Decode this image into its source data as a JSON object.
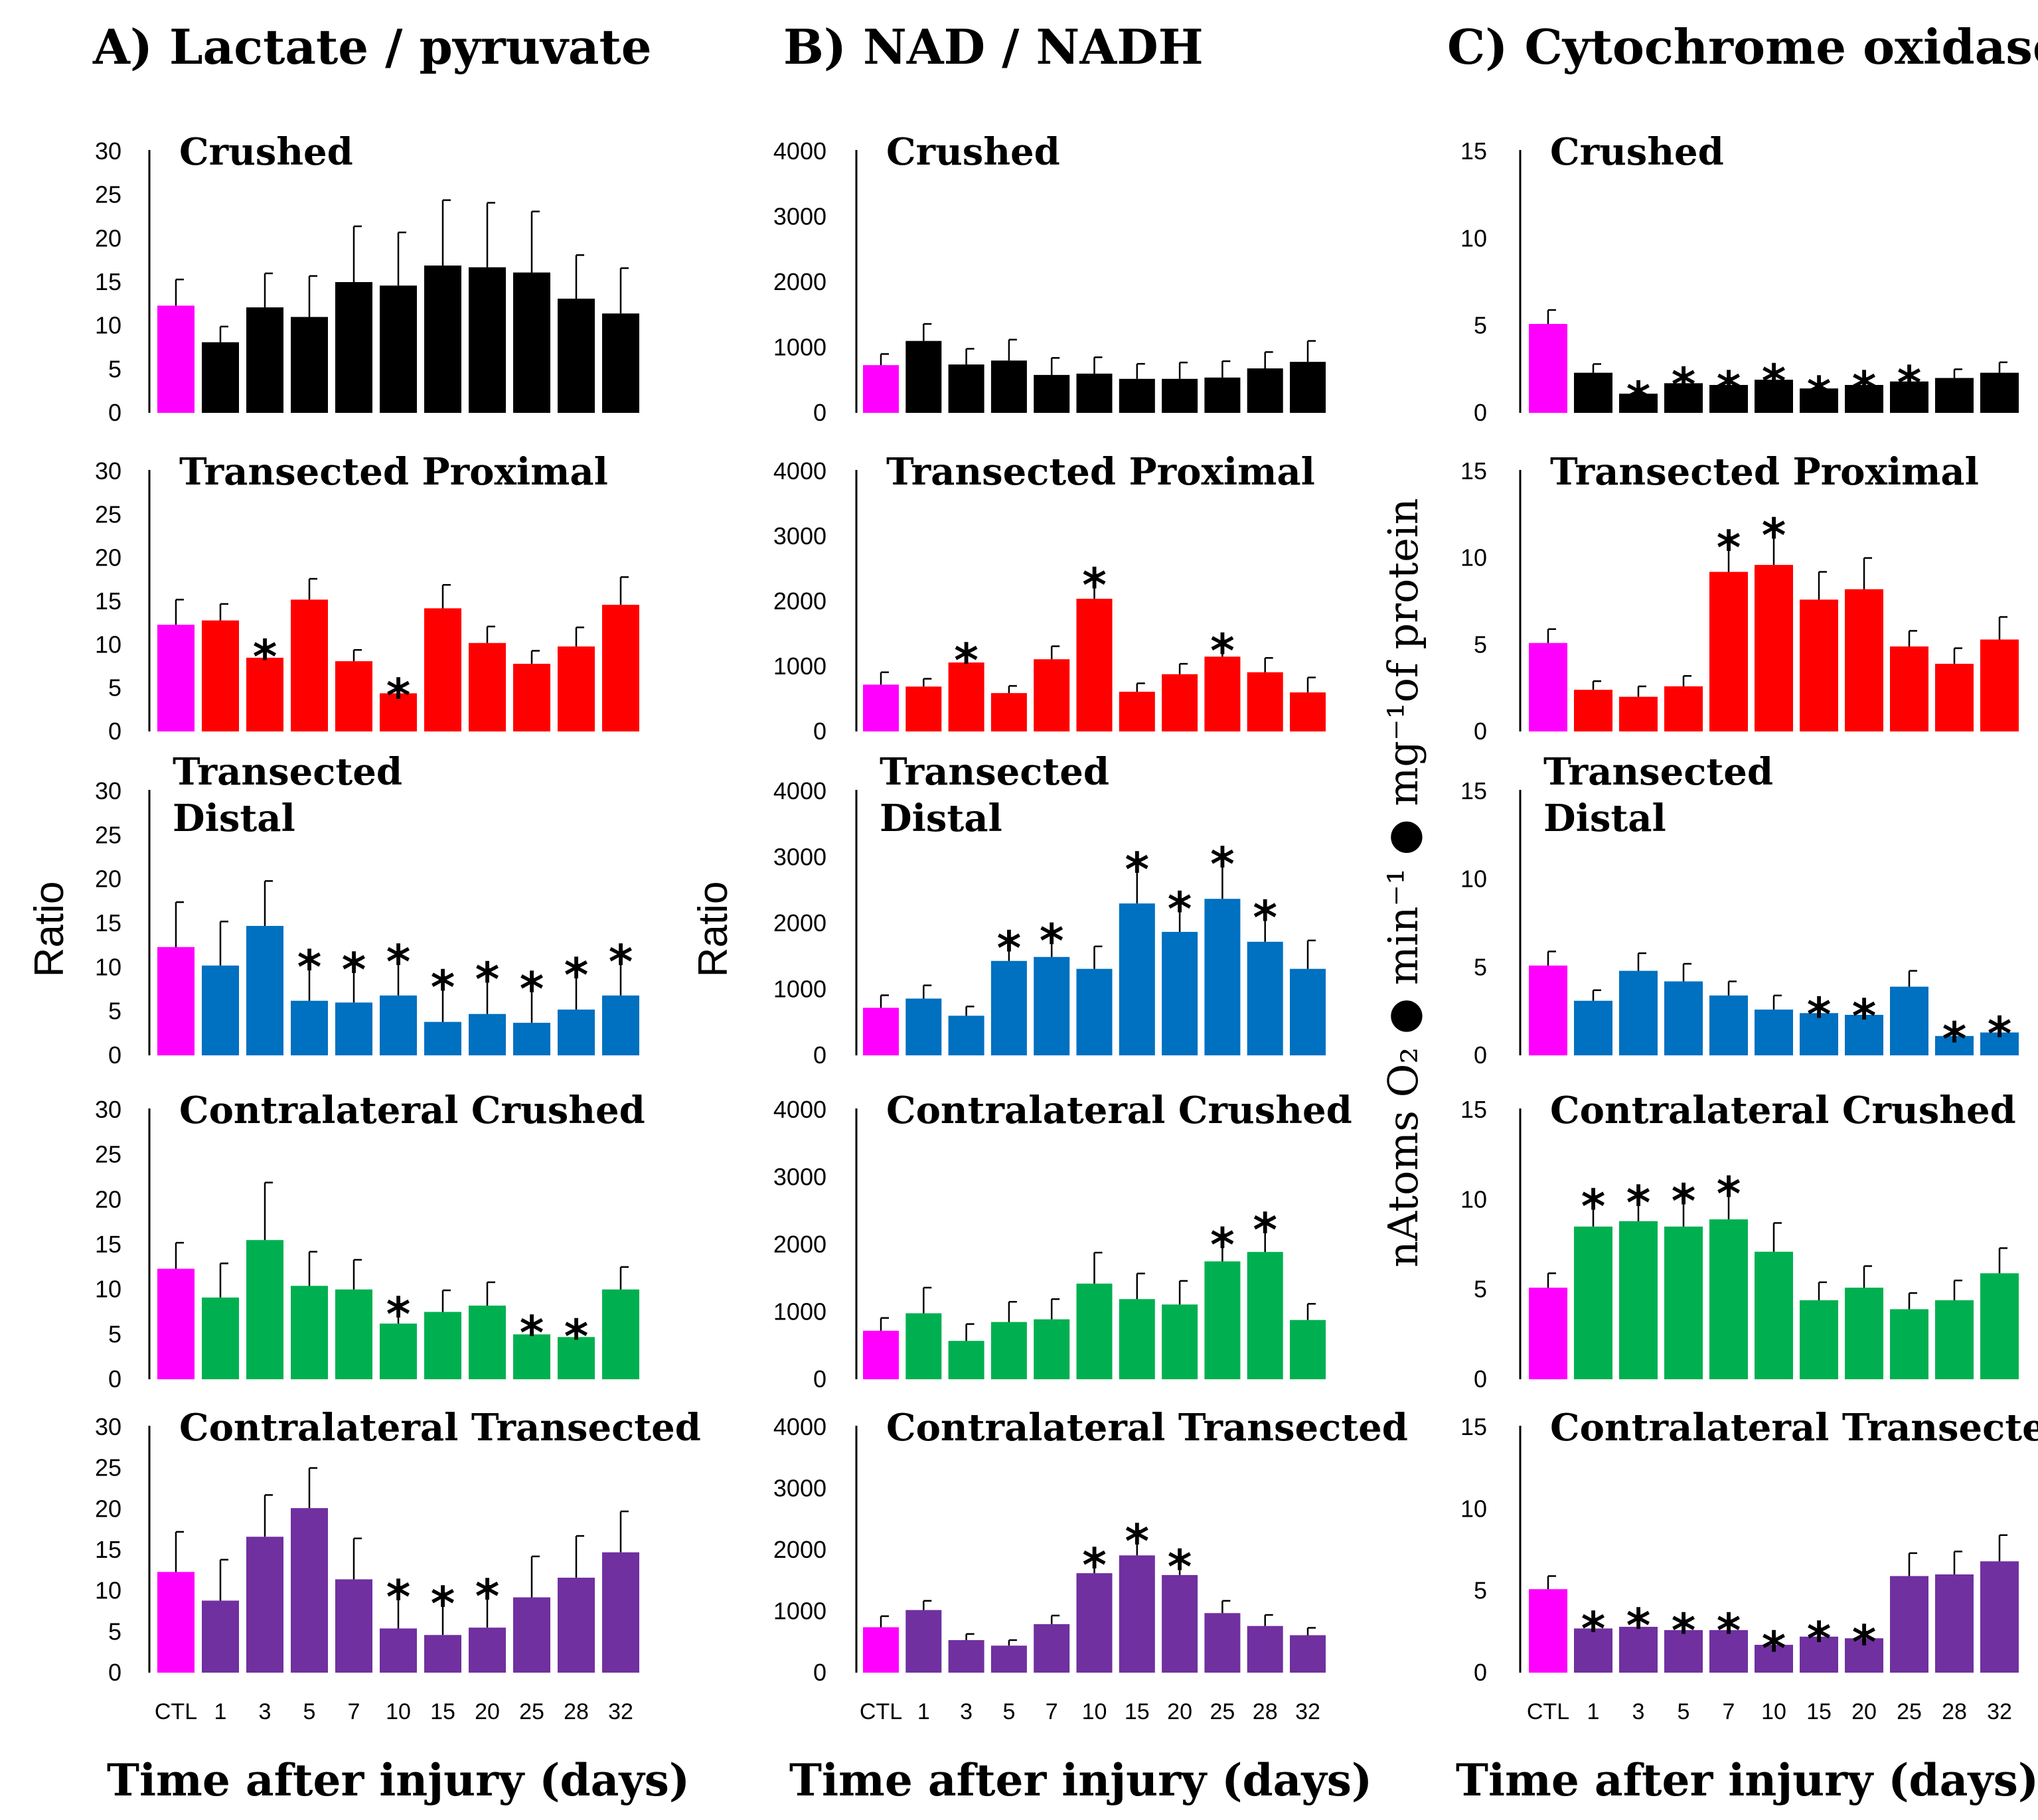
{
  "colors": {
    "CTL": "#FF00FF",
    "Crushed": "#000000",
    "TransectedProximal": "#FF0000",
    "TransectedDistal": "#0070C0",
    "ContralateralCrushed": "#00B050",
    "ContralateralTransected": "#7030A0"
  },
  "columns": [
    {
      "title": "A) Lactate / pyruvate",
      "ylabel": "Ratio"
    },
    {
      "title": "B) NAD / NADH",
      "ylabel": "Ratio"
    },
    {
      "title": "C) Cytochrome oxidase",
      "ylabel": "nAtoms O₂ ● min⁻¹ ● mg⁻¹of protein"
    }
  ],
  "xlabel": "Time after injury (days)",
  "chart_data": [
    {
      "type": "bar",
      "column": "A",
      "title": "Crushed",
      "ylabel": "Ratio",
      "xlabel": "Time after injury (days)",
      "ylim": [
        0,
        30
      ],
      "yticks": [
        0,
        5,
        10,
        15,
        20,
        25,
        30
      ],
      "categories": [
        "CTL",
        "1",
        "3",
        "5",
        "7",
        "10",
        "15",
        "20",
        "25",
        "28",
        "32"
      ],
      "values": [
        12.3,
        8.1,
        12.1,
        11.0,
        15.0,
        14.6,
        16.9,
        16.7,
        16.1,
        13.1,
        11.4
      ],
      "errors": [
        3.0,
        1.8,
        3.9,
        4.7,
        6.4,
        6.1,
        7.5,
        7.4,
        7.0,
        5.0,
        5.2
      ],
      "significant": [
        false,
        false,
        false,
        false,
        false,
        false,
        false,
        false,
        false,
        false,
        false
      ],
      "series_color_key": "Crushed"
    },
    {
      "type": "bar",
      "column": "A",
      "title": "Transected Proximal",
      "ylabel": "Ratio",
      "xlabel": "Time after injury (days)",
      "ylim": [
        0,
        30
      ],
      "yticks": [
        0,
        5,
        10,
        15,
        20,
        25,
        30
      ],
      "categories": [
        "CTL",
        "1",
        "3",
        "5",
        "7",
        "10",
        "15",
        "20",
        "25",
        "28",
        "32"
      ],
      "values": [
        12.3,
        12.8,
        8.5,
        15.2,
        8.1,
        4.4,
        14.2,
        10.2,
        7.8,
        9.8,
        14.6
      ],
      "errors": [
        2.9,
        1.9,
        1.3,
        2.4,
        1.3,
        0.9,
        2.7,
        1.9,
        1.5,
        2.2,
        3.2
      ],
      "significant": [
        false,
        false,
        true,
        false,
        false,
        true,
        false,
        false,
        false,
        false,
        false
      ],
      "series_color_key": "TransectedProximal"
    },
    {
      "type": "bar",
      "column": "A",
      "title": "Transected Distal",
      "title_lines": [
        "Transected",
        "Distal"
      ],
      "ylabel": "Ratio",
      "xlabel": "Time after injury (days)",
      "ylim": [
        0,
        30
      ],
      "yticks": [
        0,
        5,
        10,
        15,
        20,
        25,
        30
      ],
      "categories": [
        "CTL",
        "1",
        "3",
        "5",
        "7",
        "10",
        "15",
        "20",
        "25",
        "28",
        "32"
      ],
      "values": [
        12.3,
        10.2,
        14.7,
        6.2,
        6.0,
        6.8,
        3.8,
        4.7,
        3.7,
        5.2,
        6.8
      ],
      "errors": [
        5.1,
        5.0,
        5.1,
        5.0,
        4.9,
        5.0,
        5.1,
        5.1,
        5.0,
        5.1,
        5.0
      ],
      "significant": [
        false,
        false,
        false,
        true,
        true,
        true,
        true,
        true,
        true,
        true,
        true
      ],
      "series_color_key": "TransectedDistal"
    },
    {
      "type": "bar",
      "column": "A",
      "title": "Contralateral Crushed",
      "ylabel": "Ratio",
      "xlabel": "Time after injury (days)",
      "ylim": [
        0,
        30
      ],
      "yticks": [
        0,
        5,
        10,
        15,
        20,
        25,
        30
      ],
      "categories": [
        "CTL",
        "1",
        "3",
        "5",
        "7",
        "10",
        "15",
        "20",
        "25",
        "28",
        "32"
      ],
      "values": [
        12.3,
        9.1,
        15.5,
        10.4,
        10.0,
        6.2,
        7.5,
        8.2,
        5.0,
        4.7,
        10.0
      ],
      "errors": [
        2.9,
        3.8,
        6.4,
        3.8,
        3.3,
        2.2,
        2.4,
        2.6,
        1.3,
        1.2,
        2.5
      ],
      "significant": [
        false,
        false,
        false,
        false,
        false,
        true,
        false,
        false,
        true,
        true,
        false
      ],
      "series_color_key": "ContralateralCrushed"
    },
    {
      "type": "bar",
      "column": "A",
      "title": "Contralateral Transected",
      "ylabel": "Ratio",
      "xlabel": "Time after injury (days)",
      "ylim": [
        0,
        30
      ],
      "yticks": [
        0,
        5,
        10,
        15,
        20,
        25,
        30
      ],
      "categories": [
        "CTL",
        "1",
        "3",
        "5",
        "7",
        "10",
        "15",
        "20",
        "25",
        "28",
        "32"
      ],
      "values": [
        12.3,
        8.8,
        16.6,
        20.1,
        11.4,
        5.4,
        4.6,
        5.5,
        9.2,
        11.6,
        14.7
      ],
      "errors": [
        4.9,
        5.0,
        5.1,
        4.9,
        5.0,
        5.1,
        5.1,
        5.1,
        5.0,
        5.1,
        5.0
      ],
      "significant": [
        false,
        false,
        false,
        false,
        false,
        true,
        true,
        true,
        false,
        false,
        false
      ],
      "series_color_key": "ContralateralTransected"
    },
    {
      "type": "bar",
      "column": "B",
      "title": "Crushed",
      "ylabel": "Ratio",
      "xlabel": "Time after injury (days)",
      "ylim": [
        0,
        4000
      ],
      "yticks": [
        0,
        1000,
        2000,
        3000,
        4000
      ],
      "categories": [
        "CTL",
        "1",
        "3",
        "5",
        "7",
        "10",
        "15",
        "20",
        "25",
        "28",
        "32"
      ],
      "values": [
        730,
        1100,
        740,
        800,
        580,
        600,
        520,
        520,
        540,
        680,
        780
      ],
      "errors": [
        170,
        260,
        240,
        320,
        260,
        250,
        230,
        250,
        250,
        250,
        320
      ],
      "significant": [
        false,
        false,
        false,
        false,
        false,
        false,
        false,
        false,
        false,
        false,
        false
      ],
      "series_color_key": "Crushed"
    },
    {
      "type": "bar",
      "column": "B",
      "title": "Transected Proximal",
      "ylabel": "Ratio",
      "xlabel": "Time after injury (days)",
      "ylim": [
        0,
        4000
      ],
      "yticks": [
        0,
        1000,
        2000,
        3000,
        4000
      ],
      "categories": [
        "CTL",
        "1",
        "3",
        "5",
        "7",
        "10",
        "15",
        "20",
        "25",
        "28",
        "32"
      ],
      "values": [
        720,
        690,
        1060,
        590,
        1110,
        2040,
        610,
        880,
        1150,
        910,
        600
      ],
      "errors": [
        190,
        120,
        190,
        110,
        200,
        370,
        130,
        160,
        250,
        220,
        230
      ],
      "significant": [
        false,
        false,
        true,
        false,
        false,
        true,
        false,
        false,
        true,
        false,
        false
      ],
      "series_color_key": "TransectedProximal"
    },
    {
      "type": "bar",
      "column": "B",
      "title": "Transected Distal",
      "title_lines": [
        "Transected",
        "Distal"
      ],
      "ylabel": "Ratio",
      "xlabel": "Time after injury (days)",
      "ylim": [
        0,
        4000
      ],
      "yticks": [
        0,
        1000,
        2000,
        3000,
        4000
      ],
      "categories": [
        "CTL",
        "1",
        "3",
        "5",
        "7",
        "10",
        "15",
        "20",
        "25",
        "28",
        "32"
      ],
      "values": [
        720,
        860,
        600,
        1430,
        1490,
        1310,
        2300,
        1870,
        2370,
        1720,
        1310
      ],
      "errors": [
        190,
        200,
        140,
        350,
        400,
        340,
        670,
        500,
        680,
        520,
        430
      ],
      "significant": [
        false,
        false,
        false,
        true,
        true,
        false,
        true,
        true,
        true,
        true,
        false
      ],
      "series_color_key": "TransectedDistal"
    },
    {
      "type": "bar",
      "column": "B",
      "title": "Contralateral Crushed",
      "ylabel": "Ratio",
      "xlabel": "Time after injury (days)",
      "ylim": [
        0,
        4000
      ],
      "yticks": [
        0,
        1000,
        2000,
        3000,
        4000
      ],
      "categories": [
        "CTL",
        "1",
        "3",
        "5",
        "7",
        "10",
        "15",
        "20",
        "25",
        "28",
        "32"
      ],
      "values": [
        720,
        980,
        570,
        850,
        890,
        1420,
        1190,
        1110,
        1750,
        1890,
        880
      ],
      "errors": [
        190,
        380,
        250,
        300,
        300,
        460,
        380,
        350,
        400,
        480,
        240
      ],
      "significant": [
        false,
        false,
        false,
        false,
        false,
        false,
        false,
        false,
        true,
        true,
        false
      ],
      "series_color_key": "ContralateralCrushed"
    },
    {
      "type": "bar",
      "column": "B",
      "title": "Contralateral Transected",
      "ylabel": "Ratio",
      "xlabel": "Time after injury (days)",
      "ylim": [
        0,
        4000
      ],
      "yticks": [
        0,
        1000,
        2000,
        3000,
        4000
      ],
      "categories": [
        "CTL",
        "1",
        "3",
        "5",
        "7",
        "10",
        "15",
        "20",
        "25",
        "28",
        "32"
      ],
      "values": [
        740,
        1020,
        530,
        440,
        790,
        1620,
        1910,
        1590,
        970,
        760,
        610
      ],
      "errors": [
        180,
        150,
        100,
        90,
        140,
        300,
        400,
        300,
        200,
        180,
        120
      ],
      "significant": [
        false,
        false,
        false,
        false,
        false,
        true,
        true,
        true,
        false,
        false,
        false
      ],
      "series_color_key": "ContralateralTransected"
    },
    {
      "type": "bar",
      "column": "C",
      "title": "Crushed",
      "ylabel": "nAtoms O₂ ● min⁻¹ ● mg⁻¹of protein",
      "xlabel": "Time after injury (days)",
      "ylim": [
        0,
        15
      ],
      "yticks": [
        0,
        5,
        10,
        15
      ],
      "categories": [
        "CTL",
        "1",
        "3",
        "5",
        "7",
        "10",
        "15",
        "20",
        "25",
        "28",
        "32"
      ],
      "values": [
        5.1,
        2.3,
        1.1,
        1.7,
        1.6,
        1.9,
        1.4,
        1.6,
        1.8,
        2.0,
        2.3
      ],
      "errors": [
        0.8,
        0.5,
        0.3,
        0.5,
        0.4,
        0.5,
        0.3,
        0.4,
        0.5,
        0.5,
        0.6
      ],
      "significant": [
        false,
        false,
        true,
        true,
        true,
        true,
        true,
        true,
        true,
        false,
        false
      ],
      "series_color_key": "Crushed"
    },
    {
      "type": "bar",
      "column": "C",
      "title": "Transected Proximal",
      "ylabel": "nAtoms O₂ ● min⁻¹ ● mg⁻¹of protein",
      "xlabel": "Time after injury (days)",
      "ylim": [
        0,
        15
      ],
      "yticks": [
        0,
        5,
        10,
        15
      ],
      "categories": [
        "CTL",
        "1",
        "3",
        "5",
        "7",
        "10",
        "15",
        "20",
        "25",
        "28",
        "32"
      ],
      "values": [
        5.1,
        2.4,
        2.0,
        2.6,
        9.2,
        9.6,
        7.6,
        8.2,
        4.9,
        3.9,
        5.3
      ],
      "errors": [
        0.8,
        0.5,
        0.6,
        0.6,
        2.0,
        2.3,
        1.6,
        1.8,
        0.9,
        0.9,
        1.3
      ],
      "significant": [
        false,
        false,
        false,
        false,
        true,
        true,
        false,
        false,
        false,
        false,
        false
      ],
      "series_color_key": "TransectedProximal"
    },
    {
      "type": "bar",
      "column": "C",
      "title": "Transected Distal",
      "title_lines": [
        "Transected",
        "Distal"
      ],
      "ylabel": "nAtoms O₂ ● min⁻¹ ● mg⁻¹of protein",
      "xlabel": "Time after injury (days)",
      "ylim": [
        0,
        15
      ],
      "yticks": [
        0,
        5,
        10,
        15
      ],
      "categories": [
        "CTL",
        "1",
        "3",
        "5",
        "7",
        "10",
        "15",
        "20",
        "25",
        "28",
        "32"
      ],
      "values": [
        5.1,
        3.1,
        4.8,
        4.2,
        3.4,
        2.6,
        2.4,
        2.3,
        3.9,
        1.1,
        1.3
      ],
      "errors": [
        0.8,
        0.6,
        1.0,
        1.0,
        0.8,
        0.8,
        0.5,
        0.5,
        0.9,
        0.4,
        0.5
      ],
      "significant": [
        false,
        false,
        false,
        false,
        false,
        false,
        true,
        true,
        false,
        true,
        true
      ],
      "series_color_key": "TransectedDistal"
    },
    {
      "type": "bar",
      "column": "C",
      "title": "Contralateral Crushed",
      "ylabel": "nAtoms O₂ ● min⁻¹ ● mg⁻¹of protein",
      "xlabel": "Time after injury (days)",
      "ylim": [
        0,
        15
      ],
      "yticks": [
        0,
        5,
        10,
        15
      ],
      "categories": [
        "CTL",
        "1",
        "3",
        "5",
        "7",
        "10",
        "15",
        "20",
        "25",
        "28",
        "32"
      ],
      "values": [
        5.1,
        8.5,
        8.8,
        8.5,
        8.9,
        7.1,
        4.4,
        5.1,
        3.9,
        4.4,
        5.9
      ],
      "errors": [
        0.8,
        1.7,
        1.6,
        2.0,
        2.0,
        1.6,
        1.0,
        1.2,
        0.9,
        1.1,
        1.4
      ],
      "significant": [
        false,
        true,
        true,
        true,
        true,
        false,
        false,
        false,
        false,
        false,
        false
      ],
      "series_color_key": "ContralateralCrushed"
    },
    {
      "type": "bar",
      "column": "C",
      "title": "Contralateral Transected",
      "ylabel": "nAtoms O₂ ● min⁻¹ ● mg⁻¹of protein",
      "xlabel": "Time after injury (days)",
      "ylim": [
        0,
        15
      ],
      "yticks": [
        0,
        5,
        10,
        15
      ],
      "categories": [
        "CTL",
        "1",
        "3",
        "5",
        "7",
        "10",
        "15",
        "20",
        "25",
        "28",
        "32"
      ],
      "values": [
        5.1,
        2.7,
        2.8,
        2.6,
        2.6,
        1.7,
        2.2,
        2.1,
        5.9,
        6.0,
        6.8
      ],
      "errors": [
        0.8,
        0.6,
        0.7,
        0.6,
        0.6,
        0.4,
        0.5,
        0.4,
        1.4,
        1.4,
        1.6
      ],
      "significant": [
        false,
        true,
        true,
        true,
        true,
        true,
        true,
        true,
        false,
        false,
        false
      ],
      "series_color_key": "ContralateralTransected"
    }
  ]
}
